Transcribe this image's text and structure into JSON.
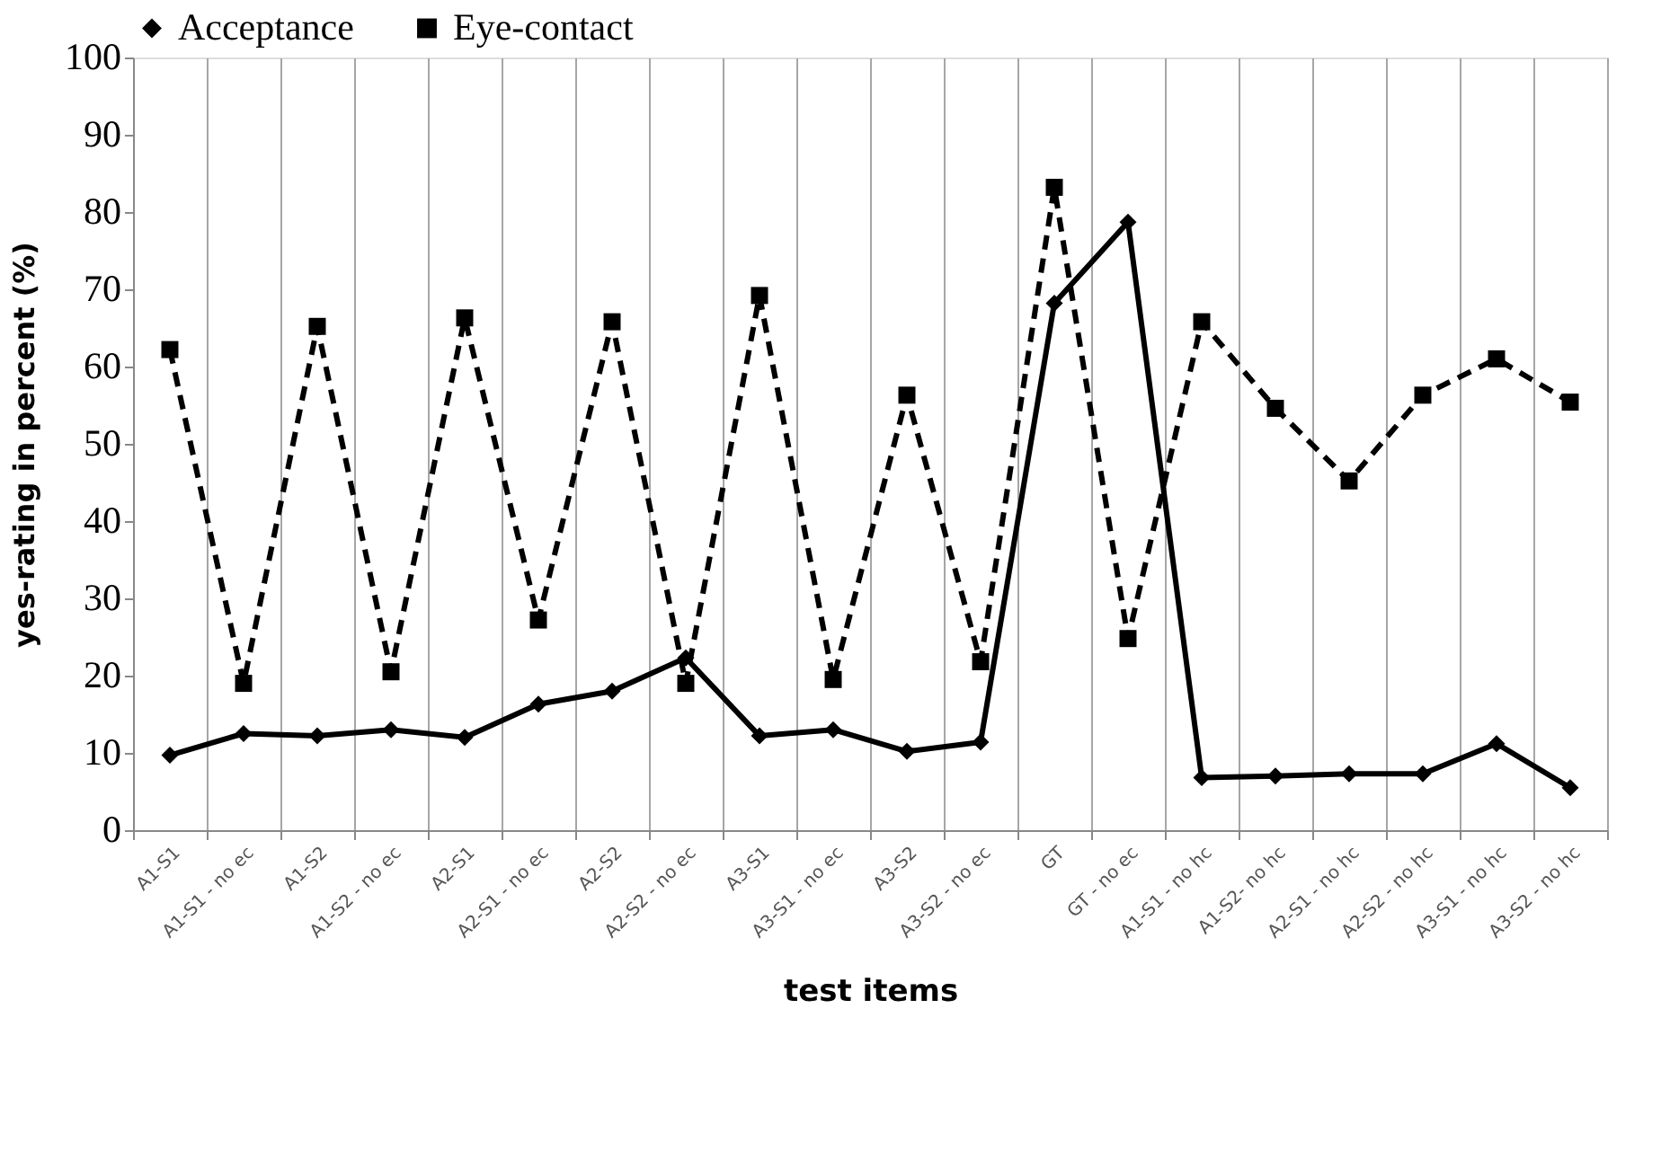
{
  "chart_data": {
    "type": "line",
    "xlabel": "test items",
    "ylabel": "yes-rating in percent (%)",
    "categories": [
      "A1-S1",
      "A1-S1 - no ec",
      "A1-S2",
      "A1-S2 - no ec",
      "A2-S1",
      "A2-S1 - no ec",
      "A2-S2",
      "A2-S2 - no ec",
      "A3-S1",
      "A3-S1 - no ec",
      "A3-S2",
      "A3-S2 - no ec",
      "GT",
      "GT  - no ec",
      "A1-S1 - no hc",
      "A1-S2- no hc",
      "A2-S1 - no hc",
      "A2-S2 - no hc",
      "A3-S1 - no hc",
      "A3-S2 - no hc"
    ],
    "series": [
      {
        "name": "Acceptance",
        "color": "#000000",
        "marker": "diamond",
        "line_style": "solid",
        "values": [
          9.7,
          12.5,
          12.2,
          13,
          12,
          16.3,
          18,
          22.3,
          12.2,
          13,
          10.2,
          11.4,
          68.2,
          78.7,
          6.8,
          7,
          7.3,
          7.3,
          11.2,
          5.5
        ]
      },
      {
        "name": "Eye-contact",
        "color": "#000000",
        "marker": "square",
        "line_style": "dashed",
        "values": [
          62.2,
          19,
          65.2,
          20.5,
          66.3,
          27.2,
          65.8,
          19,
          69.2,
          19.5,
          56.3,
          21.8,
          83.2,
          24.8,
          65.8,
          54.6,
          45.2,
          56.3,
          61,
          55.4
        ]
      }
    ],
    "ylim": [
      0,
      100
    ],
    "yticks": [
      0,
      10,
      20,
      30,
      40,
      50,
      60,
      70,
      80,
      90,
      100
    ],
    "grid": "x",
    "legend": "top"
  }
}
